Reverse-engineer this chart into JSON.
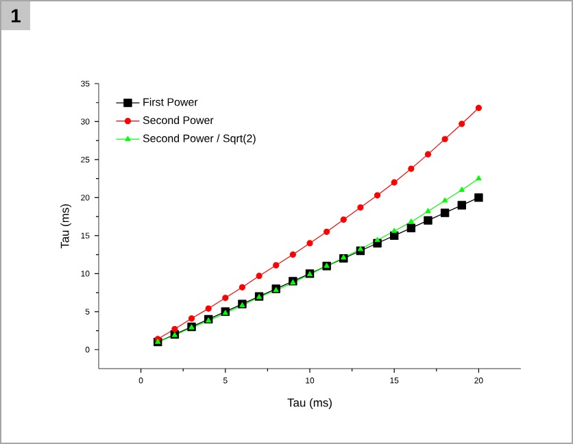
{
  "chart_data": {
    "type": "line",
    "xlabel": "Tau (ms)",
    "ylabel": "Tau (ms)",
    "annotations": [
      "1"
    ],
    "x": [
      1,
      2,
      3,
      4,
      5,
      6,
      7,
      8,
      9,
      10,
      11,
      12,
      13,
      14,
      15,
      16,
      17,
      18,
      19,
      20
    ],
    "series": [
      {
        "name": "First Power",
        "color": "#000000",
        "marker": "square",
        "values": [
          1,
          2,
          3,
          4,
          5,
          6,
          7,
          8,
          9,
          10,
          11,
          12,
          13,
          14,
          15,
          16,
          17,
          18,
          19,
          20
        ]
      },
      {
        "name": "Second Power",
        "color": "#ff0000",
        "marker": "circle",
        "values": [
          1.4,
          2.7,
          4.1,
          5.4,
          6.8,
          8.2,
          9.7,
          11.1,
          12.5,
          14.0,
          15.5,
          17.1,
          18.7,
          20.3,
          22.0,
          23.8,
          25.7,
          27.7,
          29.7,
          31.8
        ]
      },
      {
        "name": "Second Power / Sqrt(2)",
        "color": "#00ff00",
        "marker": "triangle",
        "values": [
          1.0,
          1.9,
          2.9,
          3.8,
          4.8,
          5.8,
          6.9,
          7.8,
          8.8,
          9.9,
          11.0,
          12.1,
          13.2,
          14.4,
          15.6,
          16.8,
          18.2,
          19.6,
          21.0,
          22.5
        ]
      }
    ],
    "xlim": [
      -2.5,
      22.5
    ],
    "ylim": [
      -2.5,
      35
    ],
    "xticks": [
      0,
      5,
      10,
      15,
      20
    ],
    "yticks": [
      0,
      5,
      10,
      15,
      20,
      25,
      30,
      35
    ],
    "grid": false,
    "legend": "top left",
    "line_style": "solid"
  }
}
